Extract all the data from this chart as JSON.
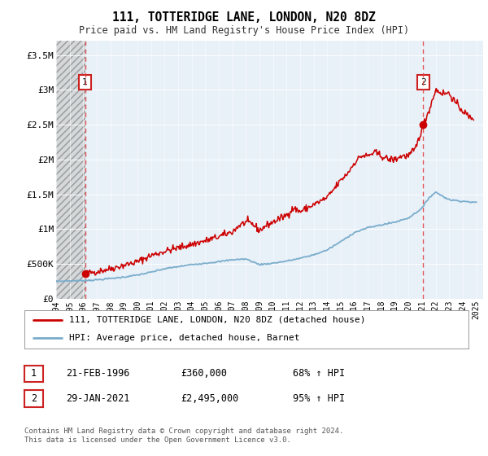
{
  "title": "111, TOTTERIDGE LANE, LONDON, N20 8DZ",
  "subtitle": "Price paid vs. HM Land Registry's House Price Index (HPI)",
  "ylabel_ticks": [
    "£0",
    "£500K",
    "£1M",
    "£1.5M",
    "£2M",
    "£2.5M",
    "£3M",
    "£3.5M"
  ],
  "ytick_values": [
    0,
    500000,
    1000000,
    1500000,
    2000000,
    2500000,
    3000000,
    3500000
  ],
  "ylim": [
    0,
    3700000
  ],
  "xlim_start": 1994.0,
  "xlim_end": 2025.5,
  "sale1_x": 1996.13,
  "sale1_y": 360000,
  "sale2_x": 2021.08,
  "sale2_y": 2495000,
  "legend_line1": "111, TOTTERIDGE LANE, LONDON, N20 8DZ (detached house)",
  "legend_line2": "HPI: Average price, detached house, Barnet",
  "footer": "Contains HM Land Registry data © Crown copyright and database right 2024.\nThis data is licensed under the Open Government Licence v3.0.",
  "line_color_red": "#cc0000",
  "line_color_blue": "#7aadcc",
  "background_plot": "#e8f0f8",
  "dashed_line_color": "#dd4444",
  "ann1_label": "1",
  "ann2_label": "2",
  "note1_date": "21-FEB-1996",
  "note1_price": "£360,000",
  "note1_hpi": "68% ↑ HPI",
  "note2_date": "29-JAN-2021",
  "note2_price": "£2,495,000",
  "note2_hpi": "95% ↑ HPI"
}
